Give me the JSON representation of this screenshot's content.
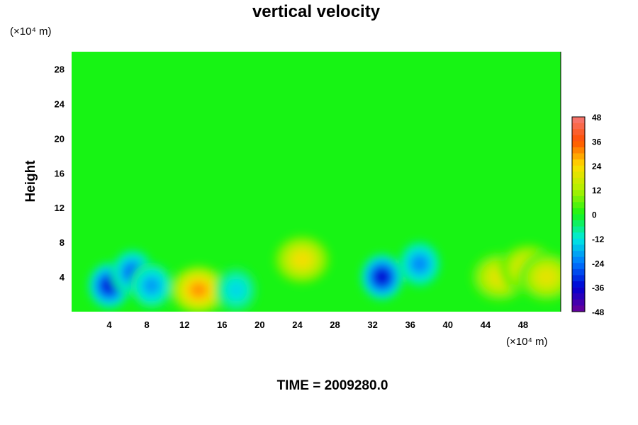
{
  "chart_data": {
    "type": "heatmap",
    "title": "vertical velocity",
    "xlabel": "",
    "ylabel": "Height",
    "x_unit": "(×10⁴ m)",
    "y_unit": "(×10⁴ m)",
    "xlim": [
      0,
      52
    ],
    "ylim": [
      0,
      30
    ],
    "x_ticks": [
      4,
      8,
      12,
      16,
      20,
      24,
      28,
      32,
      36,
      40,
      44,
      48
    ],
    "y_ticks": [
      4,
      8,
      12,
      16,
      20,
      24,
      28
    ],
    "colorbar": {
      "ticks": [
        48,
        36,
        24,
        12,
        0,
        -12,
        -24,
        -36,
        -48
      ],
      "range": [
        -48,
        48
      ]
    },
    "features": [
      {
        "x": 4.0,
        "y": 3.0,
        "value": -34
      },
      {
        "x": 6.5,
        "y": 4.5,
        "value": -26
      },
      {
        "x": 8.5,
        "y": 3.0,
        "value": -20
      },
      {
        "x": 13.5,
        "y": 2.5,
        "value": 30
      },
      {
        "x": 17.5,
        "y": 2.5,
        "value": -14
      },
      {
        "x": 24.5,
        "y": 6.0,
        "value": 22
      },
      {
        "x": 33.0,
        "y": 4.0,
        "value": -36
      },
      {
        "x": 37.0,
        "y": 5.5,
        "value": -22
      },
      {
        "x": 45.5,
        "y": 4.0,
        "value": 20
      },
      {
        "x": 48.5,
        "y": 5.0,
        "value": 22
      },
      {
        "x": 50.5,
        "y": 4.0,
        "value": 20
      }
    ],
    "footer": "TIME = 2009280.0"
  }
}
